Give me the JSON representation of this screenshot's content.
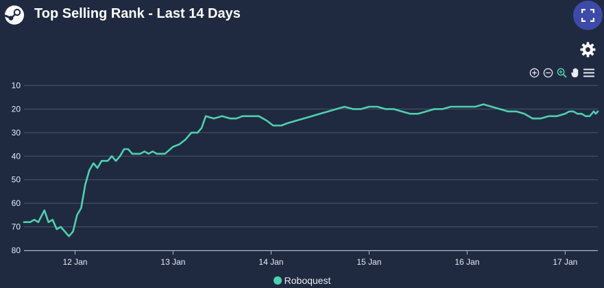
{
  "header": {
    "title": "Top Selling Rank - Last 14 Days"
  },
  "icons": {
    "logo": "steam-logo-icon",
    "fullscreen": "fullscreen-icon",
    "settings": "gear-icon",
    "zoom_in": "zoom-in-icon",
    "zoom_out": "zoom-out-icon",
    "selection_zoom": "selection-zoom-icon",
    "pan": "pan-hand-icon",
    "menu": "menu-icon"
  },
  "colors": {
    "background": "#1f2a40",
    "series": "#4fd1b0",
    "grid": "#4d5870",
    "fullscreen_button": "#3e4aa8"
  },
  "chart_data": {
    "type": "line",
    "title": "Top Selling Rank - Last 14 Days",
    "xlabel": "",
    "ylabel": "",
    "x_ticks": [
      "12 Jan",
      "13 Jan",
      "14 Jan",
      "15 Jan",
      "16 Jan",
      "17 Jan"
    ],
    "xlim": [
      "2024-01-11T11:30",
      "2024-01-17T08:00"
    ],
    "ylim": [
      80,
      10
    ],
    "y_ticks": [
      10,
      20,
      30,
      40,
      50,
      60,
      70,
      80
    ],
    "y_reversed": true,
    "grid": true,
    "legend_position": "bottom-center",
    "series": [
      {
        "name": "Roboquest",
        "color": "#4fd1b0",
        "points": [
          [
            "2024-01-11T11:30",
            68
          ],
          [
            "2024-01-11T13:00",
            68
          ],
          [
            "2024-01-11T14:00",
            67
          ],
          [
            "2024-01-11T15:00",
            68
          ],
          [
            "2024-01-11T16:30",
            63
          ],
          [
            "2024-01-11T17:30",
            68
          ],
          [
            "2024-01-11T18:30",
            67
          ],
          [
            "2024-01-11T19:30",
            71
          ],
          [
            "2024-01-11T20:30",
            70
          ],
          [
            "2024-01-11T21:30",
            72
          ],
          [
            "2024-01-11T22:30",
            74
          ],
          [
            "2024-01-11T23:30",
            72
          ],
          [
            "2024-01-12T00:30",
            65
          ],
          [
            "2024-01-12T01:30",
            62
          ],
          [
            "2024-01-12T02:30",
            52
          ],
          [
            "2024-01-12T03:30",
            46
          ],
          [
            "2024-01-12T04:30",
            43
          ],
          [
            "2024-01-12T05:30",
            45
          ],
          [
            "2024-01-12T06:30",
            42
          ],
          [
            "2024-01-12T08:00",
            42
          ],
          [
            "2024-01-12T09:00",
            40
          ],
          [
            "2024-01-12T10:00",
            42
          ],
          [
            "2024-01-12T11:00",
            40
          ],
          [
            "2024-01-12T12:00",
            37
          ],
          [
            "2024-01-12T13:00",
            37
          ],
          [
            "2024-01-12T14:00",
            39
          ],
          [
            "2024-01-12T16:00",
            39
          ],
          [
            "2024-01-12T17:00",
            38
          ],
          [
            "2024-01-12T18:00",
            39
          ],
          [
            "2024-01-12T19:00",
            38
          ],
          [
            "2024-01-12T20:00",
            39
          ],
          [
            "2024-01-12T22:00",
            39
          ],
          [
            "2024-01-13T00:00",
            36
          ],
          [
            "2024-01-13T01:30",
            35
          ],
          [
            "2024-01-13T03:00",
            33
          ],
          [
            "2024-01-13T04:30",
            30
          ],
          [
            "2024-01-13T06:00",
            30
          ],
          [
            "2024-01-13T07:00",
            28
          ],
          [
            "2024-01-13T08:00",
            23
          ],
          [
            "2024-01-13T10:00",
            24
          ],
          [
            "2024-01-13T12:00",
            23
          ],
          [
            "2024-01-13T14:00",
            24
          ],
          [
            "2024-01-13T15:30",
            24
          ],
          [
            "2024-01-13T17:00",
            23
          ],
          [
            "2024-01-13T21:00",
            23
          ],
          [
            "2024-01-13T23:00",
            25
          ],
          [
            "2024-01-14T00:30",
            27
          ],
          [
            "2024-01-14T02:30",
            27
          ],
          [
            "2024-01-14T04:00",
            26
          ],
          [
            "2024-01-14T06:00",
            25
          ],
          [
            "2024-01-14T08:00",
            24
          ],
          [
            "2024-01-14T10:00",
            23
          ],
          [
            "2024-01-14T12:00",
            22
          ],
          [
            "2024-01-14T14:00",
            21
          ],
          [
            "2024-01-14T16:00",
            20
          ],
          [
            "2024-01-14T18:00",
            19
          ],
          [
            "2024-01-14T20:00",
            20
          ],
          [
            "2024-01-14T22:00",
            20
          ],
          [
            "2024-01-15T00:00",
            19
          ],
          [
            "2024-01-15T02:00",
            19
          ],
          [
            "2024-01-15T04:00",
            20
          ],
          [
            "2024-01-15T06:00",
            20
          ],
          [
            "2024-01-15T08:00",
            21
          ],
          [
            "2024-01-15T10:00",
            22
          ],
          [
            "2024-01-15T12:00",
            22
          ],
          [
            "2024-01-15T14:00",
            21
          ],
          [
            "2024-01-15T16:00",
            20
          ],
          [
            "2024-01-15T18:00",
            20
          ],
          [
            "2024-01-15T20:00",
            19
          ],
          [
            "2024-01-15T22:00",
            19
          ],
          [
            "2024-01-16T00:00",
            19
          ],
          [
            "2024-01-16T02:00",
            19
          ],
          [
            "2024-01-16T04:00",
            18
          ],
          [
            "2024-01-16T06:00",
            19
          ],
          [
            "2024-01-16T08:00",
            20
          ],
          [
            "2024-01-16T10:00",
            21
          ],
          [
            "2024-01-16T12:00",
            21
          ],
          [
            "2024-01-16T14:00",
            22
          ],
          [
            "2024-01-16T16:00",
            24
          ],
          [
            "2024-01-16T18:00",
            24
          ],
          [
            "2024-01-16T20:00",
            23
          ],
          [
            "2024-01-16T22:00",
            23
          ],
          [
            "2024-01-17T00:00",
            22
          ],
          [
            "2024-01-17T01:00",
            21
          ],
          [
            "2024-01-17T02:00",
            21
          ],
          [
            "2024-01-17T03:00",
            22
          ],
          [
            "2024-01-17T04:00",
            22
          ],
          [
            "2024-01-17T05:00",
            23
          ],
          [
            "2024-01-17T06:00",
            23
          ],
          [
            "2024-01-17T06:30",
            22
          ],
          [
            "2024-01-17T07:00",
            21
          ],
          [
            "2024-01-17T07:30",
            22
          ],
          [
            "2024-01-17T08:00",
            21
          ]
        ]
      }
    ]
  },
  "legend": {
    "items": [
      {
        "label": "Roboquest",
        "color": "#4fd1b0"
      }
    ]
  }
}
